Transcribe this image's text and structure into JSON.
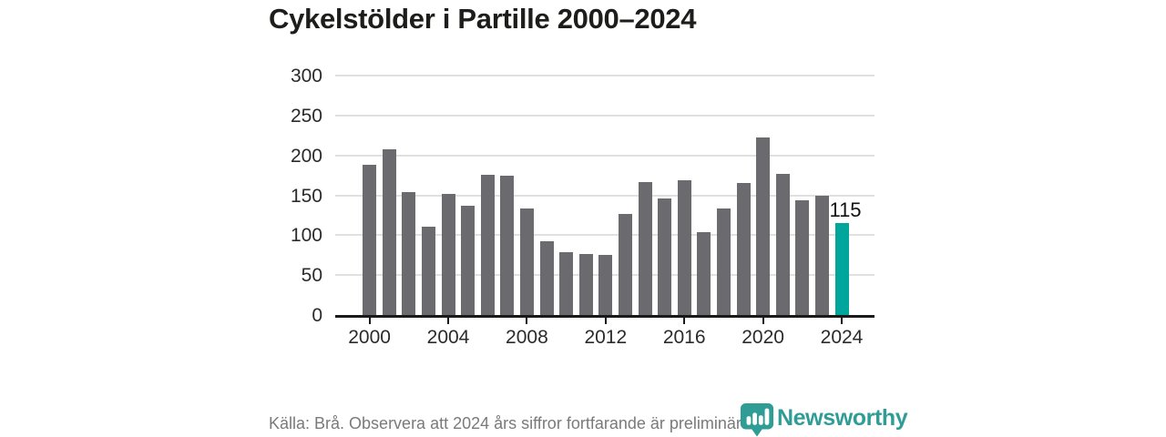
{
  "title": "Cykelstölder i Partille 2000–2024",
  "chart_data": {
    "type": "bar",
    "x": [
      2000,
      2001,
      2002,
      2003,
      2004,
      2005,
      2006,
      2007,
      2008,
      2009,
      2010,
      2011,
      2012,
      2013,
      2014,
      2015,
      2016,
      2017,
      2018,
      2019,
      2020,
      2021,
      2022,
      2023,
      2024
    ],
    "values": [
      188,
      208,
      154,
      111,
      152,
      137,
      176,
      175,
      133,
      92,
      79,
      76,
      75,
      127,
      166,
      146,
      169,
      104,
      133,
      165,
      222,
      177,
      144,
      149,
      115
    ],
    "highlight_year": 2024,
    "highlight_label": "115",
    "title": "Cykelstölder i Partille 2000–2024",
    "xlabel": "",
    "ylabel": "",
    "ylim": [
      0,
      300
    ],
    "yticks": [
      0,
      50,
      100,
      150,
      200,
      250,
      300
    ],
    "xticks": [
      2000,
      2004,
      2008,
      2012,
      2016,
      2020,
      2024
    ],
    "grid": true,
    "legend": "none",
    "colors": {
      "bar": "#6a6a6f",
      "highlight": "#00a59b",
      "gridline": "#e0e0e0",
      "axis": "#1a1a1a"
    }
  },
  "footer": {
    "source_note": "Källa: Brå. Observera att 2024 års siffror fortfarande är preliminära."
  },
  "branding": {
    "logo_text": "Newsworthy",
    "logo_color": "#2f9d96"
  }
}
